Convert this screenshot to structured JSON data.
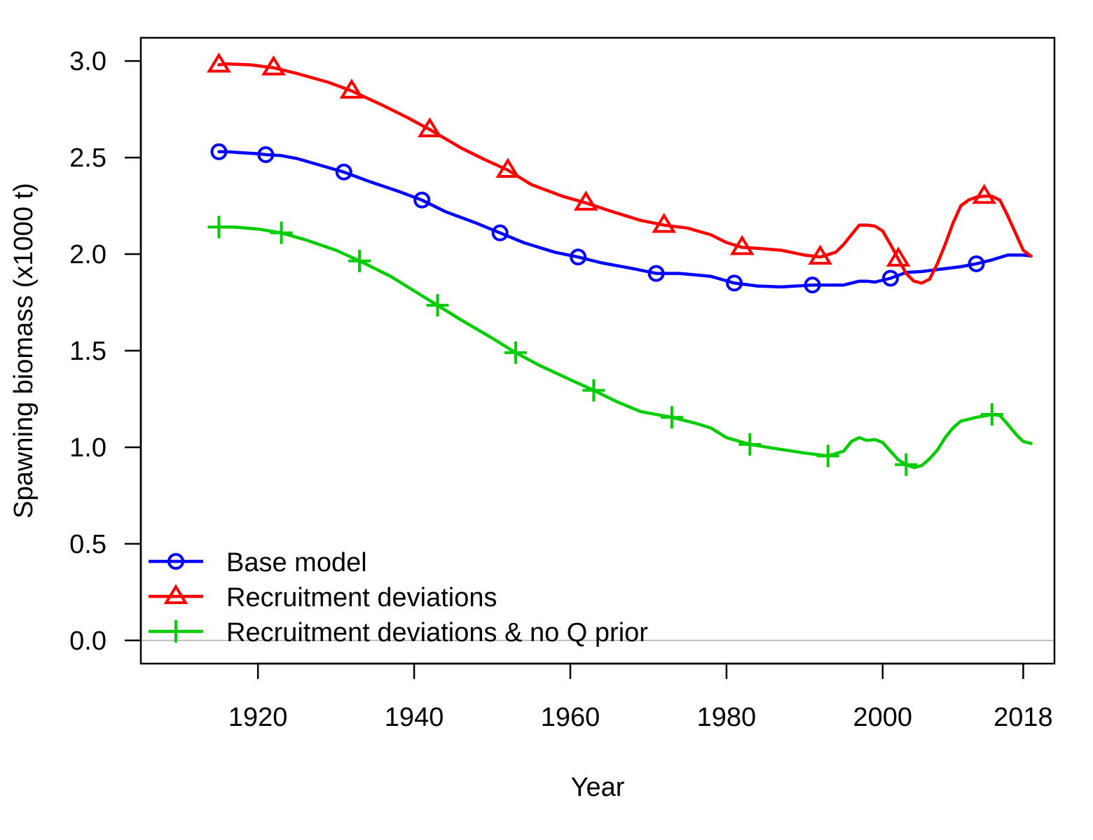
{
  "chart_data": {
    "type": "line",
    "title": "",
    "xlabel": "Year",
    "ylabel": "Spawning biomass (x1000 t)",
    "xlim": [
      1905,
      2022
    ],
    "ylim": [
      -0.12,
      3.12
    ],
    "x_ticks": [
      1920,
      1940,
      1960,
      1980,
      2000,
      2018
    ],
    "y_ticks": [
      "0.0",
      "0.5",
      "1.0",
      "1.5",
      "2.0",
      "2.5",
      "3.0"
    ],
    "reference_line": {
      "y": 0,
      "color": "#bebebe"
    },
    "grid": false,
    "legend_position": "bottom-left",
    "series": [
      {
        "name": "Base model",
        "color": "#0000ff",
        "marker": "circle",
        "marker_x": [
          1915,
          1921,
          1931,
          1941,
          1951,
          1961,
          1971,
          1981,
          1991,
          2001,
          2012
        ],
        "points": [
          [
            1915,
            2.53
          ],
          [
            1916,
            2.53
          ],
          [
            1918,
            2.525
          ],
          [
            1920,
            2.52
          ],
          [
            1921,
            2.515
          ],
          [
            1923,
            2.51
          ],
          [
            1925,
            2.495
          ],
          [
            1928,
            2.46
          ],
          [
            1931,
            2.425
          ],
          [
            1934,
            2.38
          ],
          [
            1938,
            2.325
          ],
          [
            1941,
            2.28
          ],
          [
            1944,
            2.22
          ],
          [
            1948,
            2.16
          ],
          [
            1951,
            2.11
          ],
          [
            1954,
            2.06
          ],
          [
            1958,
            2.01
          ],
          [
            1961,
            1.985
          ],
          [
            1964,
            1.955
          ],
          [
            1968,
            1.925
          ],
          [
            1971,
            1.9
          ],
          [
            1974,
            1.9
          ],
          [
            1978,
            1.885
          ],
          [
            1981,
            1.85
          ],
          [
            1984,
            1.835
          ],
          [
            1987,
            1.83
          ],
          [
            1991,
            1.84
          ],
          [
            1994,
            1.84
          ],
          [
            1995,
            1.84
          ],
          [
            1997,
            1.86
          ],
          [
            1998,
            1.86
          ],
          [
            1999,
            1.855
          ],
          [
            2001,
            1.875
          ],
          [
            2003,
            1.905
          ],
          [
            2005,
            1.91
          ],
          [
            2007,
            1.92
          ],
          [
            2010,
            1.935
          ],
          [
            2012,
            1.95
          ],
          [
            2014,
            1.97
          ],
          [
            2016,
            1.995
          ],
          [
            2018,
            1.995
          ],
          [
            2019,
            1.99
          ]
        ]
      },
      {
        "name": "Recruitment deviations",
        "color": "#ff0000",
        "marker": "triangle",
        "marker_x": [
          1915,
          1922,
          1932,
          1942,
          1952,
          1962,
          1972,
          1982,
          1992,
          2002,
          2013
        ],
        "points": [
          [
            1915,
            2.98
          ],
          [
            1916,
            2.985
          ],
          [
            1919,
            2.98
          ],
          [
            1922,
            2.965
          ],
          [
            1925,
            2.935
          ],
          [
            1929,
            2.89
          ],
          [
            1932,
            2.845
          ],
          [
            1936,
            2.77
          ],
          [
            1939,
            2.71
          ],
          [
            1942,
            2.645
          ],
          [
            1946,
            2.55
          ],
          [
            1949,
            2.49
          ],
          [
            1952,
            2.435
          ],
          [
            1955,
            2.36
          ],
          [
            1959,
            2.3
          ],
          [
            1962,
            2.265
          ],
          [
            1965,
            2.225
          ],
          [
            1969,
            2.175
          ],
          [
            1972,
            2.15
          ],
          [
            1975,
            2.135
          ],
          [
            1978,
            2.1
          ],
          [
            1980,
            2.06
          ],
          [
            1982,
            2.035
          ],
          [
            1984,
            2.03
          ],
          [
            1987,
            2.02
          ],
          [
            1990,
            1.995
          ],
          [
            1992,
            1.985
          ],
          [
            1994,
            2.01
          ],
          [
            1995,
            2.05
          ],
          [
            1996,
            2.1
          ],
          [
            1997,
            2.15
          ],
          [
            1998,
            2.15
          ],
          [
            1999,
            2.145
          ],
          [
            2000,
            2.12
          ],
          [
            2001,
            2.05
          ],
          [
            2002,
            1.975
          ],
          [
            2003,
            1.9
          ],
          [
            2004,
            1.86
          ],
          [
            2005,
            1.85
          ],
          [
            2006,
            1.87
          ],
          [
            2007,
            1.95
          ],
          [
            2008,
            2.05
          ],
          [
            2009,
            2.16
          ],
          [
            2010,
            2.25
          ],
          [
            2011,
            2.28
          ],
          [
            2012,
            2.295
          ],
          [
            2013,
            2.3
          ],
          [
            2014,
            2.3
          ],
          [
            2015,
            2.28
          ],
          [
            2016,
            2.2
          ],
          [
            2017,
            2.11
          ],
          [
            2018,
            2.02
          ],
          [
            2019,
            1.99
          ]
        ]
      },
      {
        "name": "Recruitment deviations & no Q prior",
        "color": "#00cc00",
        "marker": "plus",
        "marker_x": [
          1915,
          1923,
          1933,
          1943,
          1953,
          1963,
          1973,
          1983,
          1993,
          2003,
          2014
        ],
        "points": [
          [
            1915,
            2.14
          ],
          [
            1917,
            2.14
          ],
          [
            1920,
            2.13
          ],
          [
            1923,
            2.11
          ],
          [
            1926,
            2.075
          ],
          [
            1930,
            2.02
          ],
          [
            1933,
            1.965
          ],
          [
            1937,
            1.885
          ],
          [
            1940,
            1.81
          ],
          [
            1943,
            1.735
          ],
          [
            1946,
            1.66
          ],
          [
            1950,
            1.565
          ],
          [
            1953,
            1.49
          ],
          [
            1956,
            1.425
          ],
          [
            1960,
            1.35
          ],
          [
            1963,
            1.295
          ],
          [
            1966,
            1.235
          ],
          [
            1969,
            1.185
          ],
          [
            1973,
            1.155
          ],
          [
            1976,
            1.125
          ],
          [
            1978,
            1.1
          ],
          [
            1980,
            1.05
          ],
          [
            1983,
            1.015
          ],
          [
            1986,
            0.995
          ],
          [
            1990,
            0.97
          ],
          [
            1993,
            0.955
          ],
          [
            1995,
            0.98
          ],
          [
            1996,
            1.03
          ],
          [
            1997,
            1.05
          ],
          [
            1998,
            1.035
          ],
          [
            1999,
            1.04
          ],
          [
            2000,
            1.025
          ],
          [
            2001,
            0.98
          ],
          [
            2002,
            0.935
          ],
          [
            2003,
            0.91
          ],
          [
            2004,
            0.895
          ],
          [
            2005,
            0.905
          ],
          [
            2006,
            0.94
          ],
          [
            2007,
            0.985
          ],
          [
            2008,
            1.05
          ],
          [
            2009,
            1.1
          ],
          [
            2010,
            1.135
          ],
          [
            2012,
            1.155
          ],
          [
            2014,
            1.17
          ],
          [
            2015,
            1.165
          ],
          [
            2016,
            1.12
          ],
          [
            2017,
            1.07
          ],
          [
            2018,
            1.03
          ],
          [
            2019,
            1.02
          ]
        ]
      }
    ]
  }
}
